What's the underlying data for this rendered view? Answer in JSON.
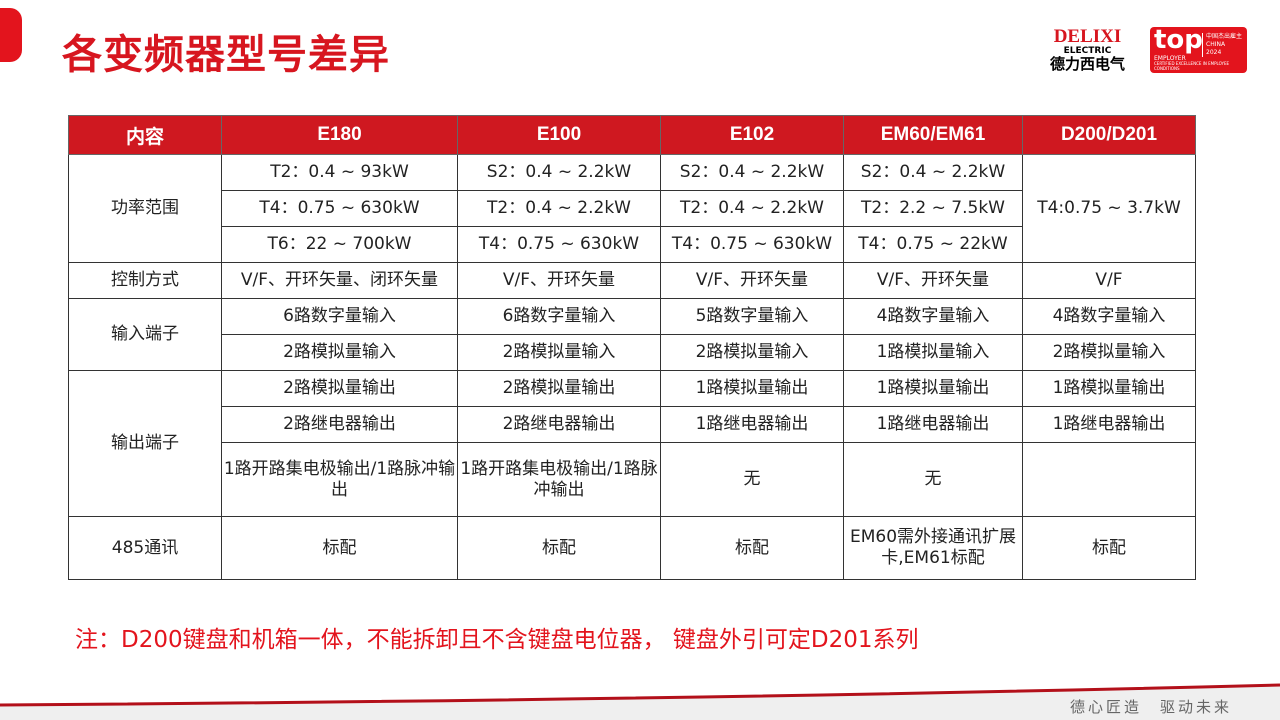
{
  "title": "各变频器型号差异",
  "logo": {
    "brand": "DELIXI",
    "sub": "ELECTRIC",
    "cn": "德力西电气"
  },
  "award": {
    "top": "top",
    "employer": "EMPLOYER",
    "cn": "中国杰出雇主",
    "country": "CHINA",
    "year": "2024",
    "tagline": "CERTIFIED EXCELLENCE IN EMPLOYEE CONDITIONS"
  },
  "table": {
    "headers": [
      "内容",
      "E180",
      "E100",
      "E102",
      "EM60/EM61",
      "D200/D201"
    ],
    "power_label": "功率范围",
    "power": [
      [
        "T2：0.4 ~ 93kW",
        "S2：0.4 ~ 2.2kW",
        "S2：0.4 ~ 2.2kW",
        "S2：0.4 ~ 2.2kW",
        "T4:0.75 ~ 3.7kW"
      ],
      [
        "T4：0.75 ~ 630kW",
        "T2：0.4 ~ 2.2kW",
        "T2：0.4 ~ 2.2kW",
        "T2：2.2 ~ 7.5kW"
      ],
      [
        "T6：22 ~ 700kW",
        "T4：0.75 ~ 630kW",
        "T4：0.75 ~ 630kW",
        "T4：0.75 ~ 22kW"
      ]
    ],
    "control_label": "控制方式",
    "control": [
      "V/F、开环矢量、闭环矢量",
      "V/F、开环矢量",
      "V/F、开环矢量",
      "V/F、开环矢量",
      "V/F"
    ],
    "input_label": "输入端子",
    "input": [
      [
        "6路数字量输入",
        "6路数字量输入",
        "5路数字量输入",
        "4路数字量输入",
        "4路数字量输入"
      ],
      [
        "2路模拟量输入",
        "2路模拟量输入",
        "2路模拟量输入",
        "1路模拟量输入",
        "2路模拟量输入"
      ]
    ],
    "output_label": "输出端子",
    "output": [
      [
        "2路模拟量输出",
        "2路模拟量输出",
        "1路模拟量输出",
        "1路模拟量输出",
        "1路模拟量输出"
      ],
      [
        "2路继电器输出",
        "2路继电器输出",
        "1路继电器输出",
        "1路继电器输出",
        "1路继电器输出"
      ],
      [
        "1路开路集电极输出/1路脉冲输出",
        "1路开路集电极输出/1路脉冲输出",
        "无",
        "无",
        ""
      ]
    ],
    "comm_label": "485通讯",
    "comm": [
      "标配",
      "标配",
      "标配",
      "EM60需外接通讯扩展卡,EM61标配",
      "标配"
    ]
  },
  "note": "注：D200键盘和机箱一体，不能拆卸且不含键盘电位器， 键盘外引可定D201系列",
  "slogan": "德心匠造　驱动未来",
  "colors": {
    "brand_red": "#d7161f",
    "header_bg": "#cf1820"
  }
}
